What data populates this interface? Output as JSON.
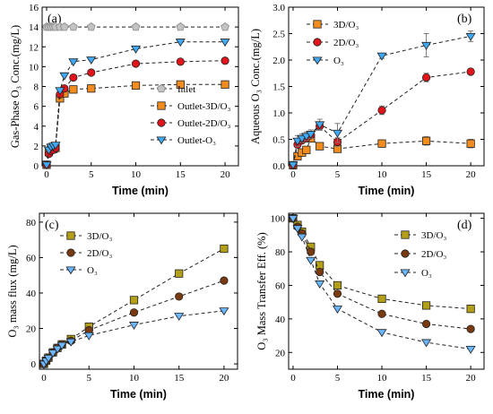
{
  "colors": {
    "inlet": "#c3c3c3",
    "orange": "#f28c1f",
    "red": "#e0141a",
    "blue": "#3fa9f5",
    "olive": "#b3a018",
    "brown": "#7a3a10",
    "lightblue": "#6ab6ff",
    "error_bar": "#7a7a7a"
  },
  "chart_data": [
    {
      "panel": "(a)",
      "type": "line",
      "ylabel": "Gas-Phase O₃ Conc.(mg/L)",
      "xlabel": "Time (min)",
      "xlim": [
        -0.5,
        21.5
      ],
      "ylim": [
        0,
        16
      ],
      "xticks": [
        0,
        5,
        10,
        15,
        20
      ],
      "yticks": [
        0,
        2,
        4,
        6,
        8,
        10,
        12,
        14,
        16
      ],
      "legend_position": "center-right",
      "series": [
        {
          "name": "Inlet",
          "marker": "pentagon",
          "color_key": "inlet",
          "x": [
            0,
            0.25,
            0.5,
            0.75,
            1,
            1.5,
            2,
            3,
            5,
            10,
            15,
            20
          ],
          "y": [
            14,
            14,
            14,
            14,
            14,
            14,
            14,
            14,
            14,
            14,
            14,
            14
          ]
        },
        {
          "name": "Outlet-3D/O₃",
          "marker": "square",
          "color_key": "orange",
          "x": [
            0,
            0.25,
            0.5,
            0.75,
            1,
            1.5,
            2,
            3,
            5,
            10,
            15,
            20
          ],
          "y": [
            0.1,
            1.4,
            1.7,
            1.7,
            1.8,
            6.8,
            7.3,
            7.7,
            7.8,
            8.1,
            8.2,
            8.2
          ]
        },
        {
          "name": "Outlet-2D/O₃",
          "marker": "circle",
          "color_key": "red",
          "x": [
            0,
            0.25,
            0.5,
            0.75,
            1,
            1.5,
            2,
            3,
            5,
            10,
            15,
            20
          ],
          "y": [
            0.1,
            1.2,
            1.5,
            1.6,
            1.8,
            7.2,
            7.8,
            8.9,
            9.4,
            10.3,
            10.5,
            10.6
          ]
        },
        {
          "name": "Outlet-O₃",
          "marker": "triangle-down",
          "color_key": "blue",
          "x": [
            0,
            0.25,
            0.5,
            0.75,
            1,
            1.5,
            2,
            3,
            5,
            10,
            15,
            20
          ],
          "y": [
            0.1,
            1.6,
            1.9,
            2.0,
            2.1,
            7.6,
            9.1,
            10.5,
            10.7,
            11.8,
            12.5,
            12.5
          ]
        }
      ]
    },
    {
      "panel": "(b)",
      "type": "line",
      "ylabel": "Aqueous O₃ Conc.(mg/L)",
      "xlabel": "Time (min)",
      "xlim": [
        -0.5,
        21.5
      ],
      "ylim": [
        0,
        3.0
      ],
      "xticks": [
        0,
        5,
        10,
        15,
        20
      ],
      "yticks": [
        0.0,
        0.5,
        1.0,
        1.5,
        2.0,
        2.5,
        3.0
      ],
      "legend_position": "top-left",
      "series": [
        {
          "name": "3D/O₃",
          "marker": "square",
          "color_key": "orange",
          "x": [
            0,
            0.5,
            1,
            1.5,
            2,
            3,
            5,
            10,
            15,
            20
          ],
          "y": [
            0.01,
            0.18,
            0.25,
            0.3,
            0.52,
            0.37,
            0.32,
            0.42,
            0.47,
            0.42
          ],
          "err": [
            0,
            0.05,
            0.04,
            0.05,
            0.06,
            0.05,
            0.04,
            0.05,
            0.08,
            0.08
          ]
        },
        {
          "name": "2D/O₃",
          "marker": "circle",
          "color_key": "red",
          "x": [
            0,
            0.5,
            1,
            1.5,
            2,
            3,
            5,
            10,
            15,
            20
          ],
          "y": [
            0.01,
            0.4,
            0.48,
            0.52,
            0.58,
            0.75,
            0.45,
            1.05,
            1.67,
            1.78
          ],
          "err": [
            0,
            0.06,
            0.06,
            0.06,
            0.06,
            0.08,
            0.08,
            0.08,
            0.08,
            0.05
          ]
        },
        {
          "name": "O₃",
          "marker": "triangle-down",
          "color_key": "blue",
          "x": [
            0,
            0.5,
            1,
            1.5,
            2,
            3,
            5,
            10,
            15,
            20
          ],
          "y": [
            0.02,
            0.47,
            0.52,
            0.56,
            0.6,
            0.78,
            0.62,
            2.08,
            2.28,
            2.45
          ],
          "err": [
            0,
            0.1,
            0.08,
            0.08,
            0.08,
            0.1,
            0.18,
            0.05,
            0.22,
            0.1
          ]
        }
      ]
    },
    {
      "panel": "(c)",
      "type": "line",
      "ylabel": "O₃ mass flux (mg/L)",
      "xlabel": "Time (min)",
      "xlim": [
        -0.5,
        21.5
      ],
      "ylim": [
        -3,
        85
      ],
      "xticks": [
        0,
        5,
        10,
        15,
        20
      ],
      "yticks": [
        0,
        20,
        40,
        60,
        80
      ],
      "legend_position": "top-left",
      "series": [
        {
          "name": "3D/O₃",
          "marker": "square",
          "color_key": "olive",
          "x": [
            0,
            0.25,
            0.5,
            1,
            1.5,
            2,
            3,
            5,
            10,
            15,
            20
          ],
          "y": [
            0,
            1.8,
            3.5,
            6.5,
            9,
            11,
            14,
            21,
            36,
            51,
            65
          ]
        },
        {
          "name": "2D/O₃",
          "marker": "circle",
          "color_key": "brown",
          "x": [
            0,
            0.25,
            0.5,
            1,
            1.5,
            2,
            3,
            5,
            10,
            15,
            20
          ],
          "y": [
            0,
            1.8,
            3.5,
            6.4,
            9,
            11,
            13,
            19,
            29,
            38,
            47
          ]
        },
        {
          "name": "O₃",
          "marker": "triangle-down",
          "color_key": "lightblue",
          "x": [
            0,
            0.25,
            0.5,
            1,
            1.5,
            2,
            3,
            5,
            10,
            15,
            20
          ],
          "y": [
            0,
            1.7,
            3.3,
            6.2,
            8.5,
            10.5,
            12.5,
            16,
            22,
            27,
            30
          ]
        }
      ]
    },
    {
      "panel": "(d)",
      "type": "line",
      "ylabel": "O₃ Mass Transfer Eff. (%)",
      "xlabel": "Time (min)",
      "xlim": [
        -0.5,
        21.5
      ],
      "ylim": [
        10,
        103
      ],
      "xticks": [
        0,
        5,
        10,
        15,
        20
      ],
      "yticks": [
        20,
        40,
        60,
        80,
        100
      ],
      "legend_position": "top-right",
      "series": [
        {
          "name": "3D/O₃",
          "marker": "square",
          "color_key": "olive",
          "x": [
            0,
            0.5,
            1,
            2,
            3,
            5,
            10,
            15,
            20
          ],
          "y": [
            100,
            96,
            92,
            83,
            72,
            60,
            52,
            48,
            46
          ]
        },
        {
          "name": "2D/O₃",
          "marker": "circle",
          "color_key": "brown",
          "x": [
            0,
            0.5,
            1,
            2,
            3,
            5,
            10,
            15,
            20
          ],
          "y": [
            100,
            95,
            91,
            80,
            68,
            55,
            43,
            37,
            34
          ]
        },
        {
          "name": "O₃",
          "marker": "triangle-down",
          "color_key": "lightblue",
          "x": [
            0,
            0.5,
            1,
            2,
            3,
            5,
            10,
            15,
            20
          ],
          "y": [
            100,
            94,
            89,
            75,
            61,
            46,
            32,
            26,
            22
          ]
        }
      ]
    }
  ]
}
